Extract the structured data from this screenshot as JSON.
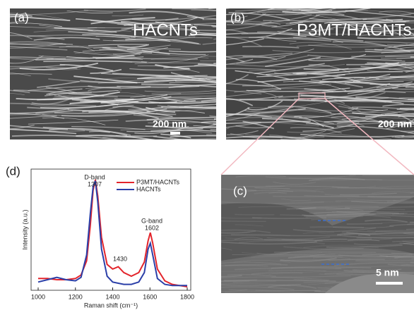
{
  "panels": {
    "a": {
      "label": "(a)",
      "title": "HACNTs",
      "scale": "200 nm"
    },
    "b": {
      "label": "(b)",
      "title": "P3MT/HACNTs",
      "scale": "200 nm"
    },
    "c": {
      "label": "(c)",
      "scale": "5 nm"
    }
  },
  "chart_data": {
    "type": "line",
    "label": "(d)",
    "xlabel": "Raman shift (cm⁻¹)",
    "ylabel": "Intensity (a.u.)",
    "x": [
      1000,
      1050,
      1100,
      1150,
      1200,
      1230,
      1260,
      1280,
      1295,
      1307,
      1320,
      1340,
      1370,
      1400,
      1430,
      1460,
      1500,
      1540,
      1570,
      1590,
      1602,
      1615,
      1640,
      1680,
      1720,
      1760,
      1800
    ],
    "series": [
      {
        "name": "P3MT/HACNTs",
        "color": "#e3242b",
        "values": [
          10,
          10,
          9,
          9,
          10,
          13,
          25,
          55,
          85,
          94,
          80,
          45,
          22,
          18,
          20,
          15,
          12,
          15,
          24,
          42,
          49,
          40,
          18,
          8,
          5,
          4,
          3
        ]
      },
      {
        "name": "HACNTs",
        "color": "#2b3fa8",
        "values": [
          7,
          9,
          11,
          9,
          8,
          11,
          30,
          65,
          88,
          93,
          75,
          35,
          12,
          7,
          6,
          5,
          5,
          7,
          15,
          35,
          40,
          30,
          10,
          5,
          4,
          4,
          4
        ]
      }
    ],
    "annotations": [
      "D-band",
      "1307",
      "1430",
      "G-band",
      "1602"
    ],
    "xlim": [
      1000,
      1800
    ],
    "xticks": [
      1000,
      1200,
      1400,
      1600,
      1800
    ],
    "ylim": [
      0,
      100
    ],
    "legend": "upper right"
  }
}
